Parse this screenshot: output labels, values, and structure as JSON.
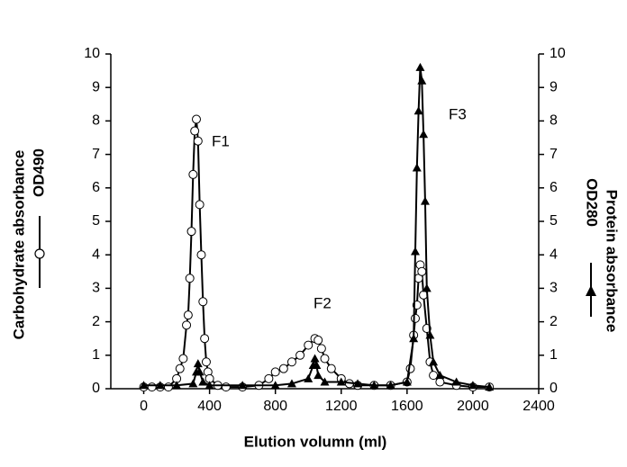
{
  "chart_data": {
    "type": "line",
    "xlabel": "Elution volumn (ml)",
    "ylabel": "Carbohydrate absorbance",
    "y2label": "Protein absorbance",
    "xlim": [
      -200,
      2400
    ],
    "xticks": [
      0,
      400,
      800,
      1200,
      1600,
      2000,
      2400
    ],
    "ylim": [
      0,
      10
    ],
    "yticks": [
      0,
      1,
      2,
      3,
      4,
      5,
      6,
      7,
      8,
      9,
      10
    ],
    "y2lim": [
      0,
      10
    ],
    "y2ticks": [
      0,
      1,
      2,
      3,
      4,
      5,
      6,
      7,
      8,
      9,
      10
    ],
    "annotations": [
      "F1",
      "F2",
      "F3"
    ],
    "series": [
      {
        "name": "OD490",
        "color": "#000000",
        "marker": "circle",
        "x": [
          0,
          50,
          100,
          150,
          200,
          220,
          240,
          260,
          270,
          280,
          290,
          300,
          310,
          320,
          330,
          340,
          350,
          360,
          370,
          380,
          390,
          400,
          450,
          500,
          600,
          700,
          760,
          800,
          850,
          900,
          950,
          1000,
          1040,
          1060,
          1080,
          1100,
          1140,
          1200,
          1250,
          1300,
          1400,
          1500,
          1600,
          1620,
          1640,
          1650,
          1660,
          1670,
          1680,
          1690,
          1700,
          1720,
          1740,
          1760,
          1800,
          1900,
          2000,
          2100
        ],
        "values": [
          0.05,
          0.05,
          0.05,
          0.05,
          0.3,
          0.6,
          0.9,
          1.9,
          2.2,
          3.3,
          4.7,
          6.4,
          7.7,
          8.05,
          7.4,
          5.5,
          4.0,
          2.6,
          1.5,
          0.8,
          0.5,
          0.3,
          0.1,
          0.05,
          0.05,
          0.1,
          0.3,
          0.5,
          0.6,
          0.8,
          1.0,
          1.3,
          1.5,
          1.45,
          1.2,
          0.9,
          0.6,
          0.3,
          0.15,
          0.1,
          0.1,
          0.1,
          0.2,
          0.6,
          1.6,
          2.1,
          2.5,
          3.3,
          3.7,
          3.5,
          2.8,
          1.8,
          0.8,
          0.4,
          0.2,
          0.1,
          0.05,
          0.05
        ]
      },
      {
        "name": "OD280",
        "color": "#000000",
        "marker": "triangle",
        "axis": "y2",
        "x": [
          0,
          100,
          200,
          300,
          320,
          330,
          340,
          360,
          400,
          600,
          800,
          900,
          1000,
          1030,
          1040,
          1050,
          1060,
          1100,
          1200,
          1300,
          1400,
          1500,
          1600,
          1640,
          1650,
          1660,
          1670,
          1680,
          1690,
          1700,
          1710,
          1720,
          1740,
          1760,
          1800,
          1900,
          2000,
          2100
        ],
        "values": [
          0.1,
          0.1,
          0.1,
          0.15,
          0.5,
          0.75,
          0.5,
          0.2,
          0.1,
          0.1,
          0.1,
          0.15,
          0.3,
          0.7,
          0.9,
          0.7,
          0.4,
          0.2,
          0.2,
          0.15,
          0.1,
          0.1,
          0.2,
          1.5,
          4.1,
          6.6,
          8.3,
          9.6,
          9.2,
          7.6,
          5.6,
          3.0,
          1.6,
          0.8,
          0.4,
          0.2,
          0.1,
          0.05
        ]
      }
    ]
  }
}
